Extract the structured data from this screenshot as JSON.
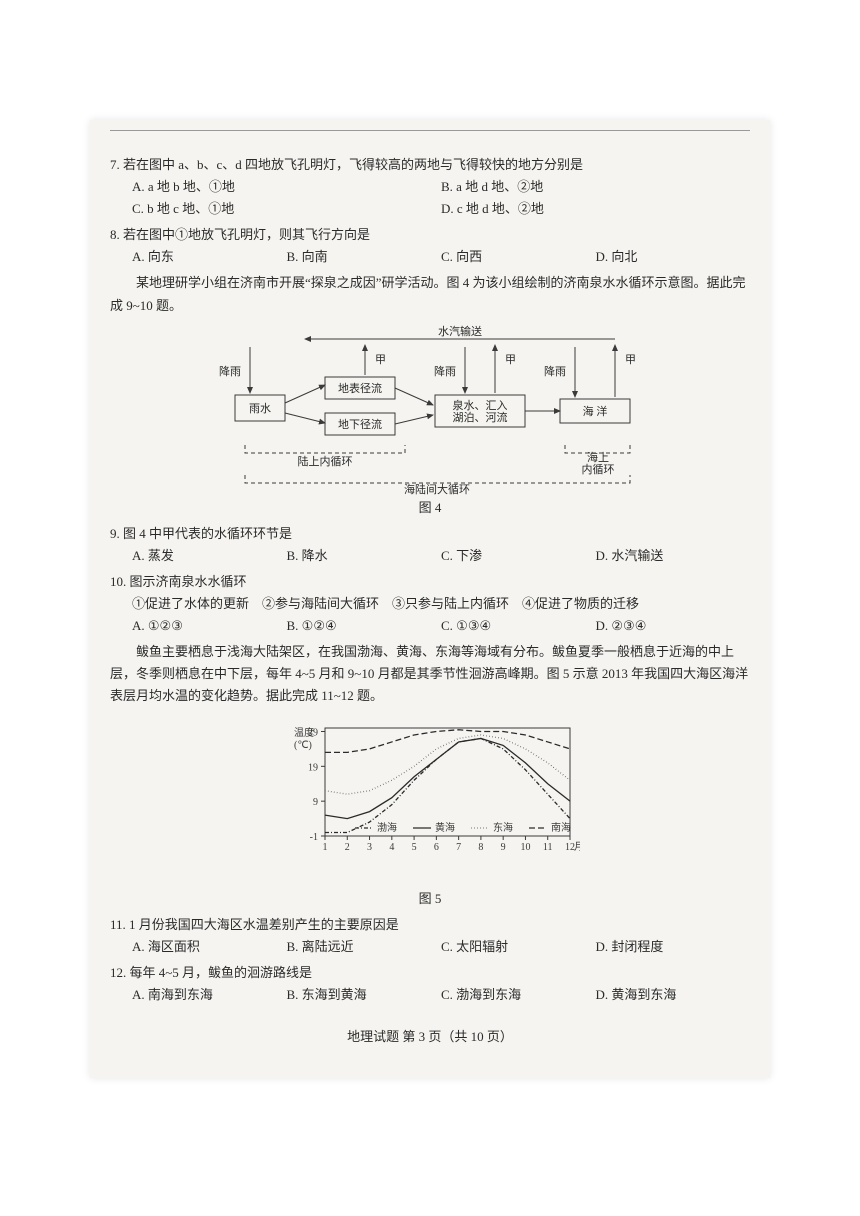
{
  "q7": {
    "stem": "7. 若在图中 a、b、c、d 四地放飞孔明灯，飞得较高的两地与飞得较快的地方分别是",
    "opts": [
      "A. a 地 b 地、①地",
      "B. a 地 d 地、②地",
      "C. b 地 c 地、①地",
      "D. c 地 d 地、②地"
    ]
  },
  "q8": {
    "stem": "8. 若在图中①地放飞孔明灯，则其飞行方向是",
    "opts": [
      "A. 向东",
      "B. 向南",
      "C. 向西",
      "D. 向北"
    ]
  },
  "intro910": "某地理研学小组在济南市开展“探泉之成因”研学活动。图 4 为该小组绘制的济南泉水水循环示意图。据此完成 9~10 题。",
  "fig4": {
    "caption": "图 4",
    "top_label": "水汽输送",
    "nodes": {
      "rain": "雨水",
      "surface": "地表径流",
      "ground": "地下径流",
      "spring": "泉水、汇入\n湖泊、河流",
      "sea": "海 洋"
    },
    "arrows": {
      "down": "降雨",
      "up": "甲"
    },
    "cycles": {
      "land": "陆上内循环",
      "sea": "海上\n内循环",
      "big": "海陆间大循环"
    },
    "style": {
      "bg": "#f5f4f0",
      "line": "#3a3a3a",
      "text": "#2a2a2a",
      "box_fill": "#f5f4f0",
      "fontsize": 11
    }
  },
  "q9": {
    "stem": "9. 图 4 中甲代表的水循环环节是",
    "opts": [
      "A. 蒸发",
      "B. 降水",
      "C. 下渗",
      "D. 水汽输送"
    ]
  },
  "q10": {
    "stem": "10. 图示济南泉水水循环",
    "items": "①促进了水体的更新　②参与海陆间大循环　③只参与陆上内循环　④促进了物质的迁移",
    "opts": [
      "A. ①②③",
      "B. ①②④",
      "C. ①③④",
      "D. ②③④"
    ]
  },
  "intro1112": "鲅鱼主要栖息于浅海大陆架区，在我国渤海、黄海、东海等海域有分布。鲅鱼夏季一般栖息于近海的中上层，冬季则栖息在中下层，每年 4~5 月和 9~10 月都是其季节性洄游高峰期。图 5 示意 2013 年我国四大海区海洋表层月均水温的变化趋势。据此完成 11~12 题。",
  "fig5": {
    "caption": "图 5",
    "ylabel": "温度\n(℃)",
    "xlabel_suffix": "月",
    "xticks": [
      1,
      2,
      3,
      4,
      5,
      6,
      7,
      8,
      9,
      10,
      11,
      12
    ],
    "yticks": [
      -1,
      9,
      19,
      29
    ],
    "ylim": [
      -1,
      30
    ],
    "legend": [
      "渤海",
      "黄海",
      "东海",
      "南海"
    ],
    "series": {
      "bohai": {
        "label": "渤海",
        "dash": "4 2 1 2",
        "data": [
          0,
          0,
          3,
          8,
          15,
          21,
          26,
          27,
          24,
          18,
          11,
          4
        ]
      },
      "huanghai": {
        "label": "黄海",
        "dash": "none",
        "data": [
          5,
          4,
          6,
          10,
          16,
          21,
          26,
          27,
          25,
          20,
          14,
          9
        ]
      },
      "donghai": {
        "label": "东海",
        "dash": "0.5 2.5",
        "data": [
          12,
          11,
          12,
          15,
          19,
          24,
          27,
          28,
          27,
          24,
          20,
          15
        ]
      },
      "nanhai": {
        "label": "南海",
        "dash": "6 3",
        "data": [
          23,
          23,
          24,
          26,
          28,
          29,
          29.5,
          29,
          29,
          28,
          26,
          24
        ]
      }
    },
    "style": {
      "axis": "#3a3a3a",
      "grid": "#cfccc5",
      "line": "#2a2a2a",
      "bg": "#f5f4f0",
      "fontsize": 10,
      "line_width": 1.3
    }
  },
  "q11": {
    "stem": "11. 1 月份我国四大海区水温差别产生的主要原因是",
    "opts": [
      "A. 海区面积",
      "B. 离陆远近",
      "C. 太阳辐射",
      "D. 封闭程度"
    ]
  },
  "q12": {
    "stem": "12. 每年 4~5 月，鲅鱼的洄游路线是",
    "opts": [
      "A. 南海到东海",
      "B. 东海到黄海",
      "C. 渤海到东海",
      "D. 黄海到东海"
    ]
  },
  "footer": "地理试题 第 3 页（共 10 页）"
}
